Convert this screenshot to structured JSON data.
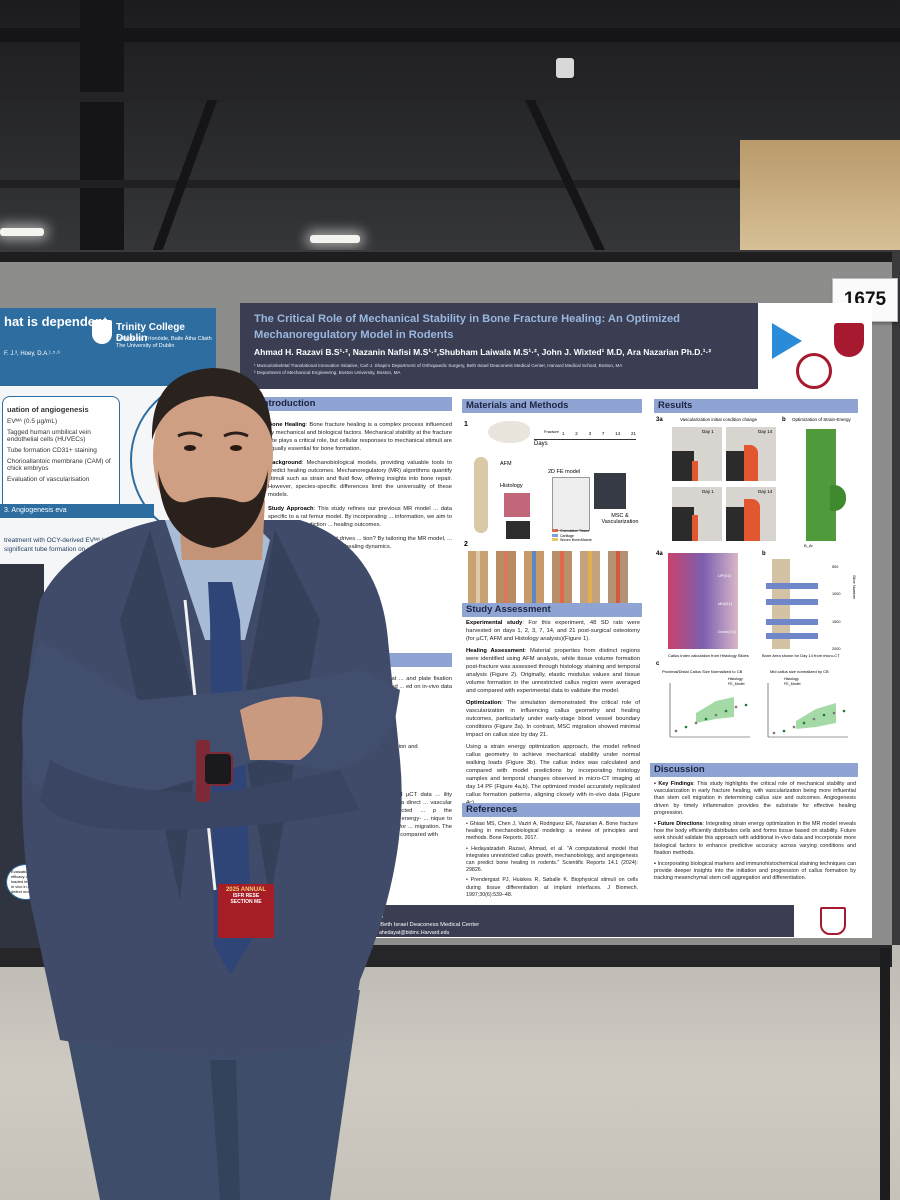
{
  "booth_number": "1675",
  "left_poster": {
    "title": "hat is dependent",
    "institution": "Trinity College Dublin",
    "institution_sub": "Coláiste na Tríonóide, Baile Átha Cliath\nThe University of Dublin",
    "authors": "F. J.³, Hoey, D.A.¹·⁵·⁶",
    "box_line1": "uation of angiogenesis",
    "box_line2": "EVᴹᴬ (0.5 µg/mL)",
    "box_line3": "Tagged human umbilical vein endothelial cells (HUVECs)",
    "box_line4": "Tube formation CD31+ staining",
    "box_line5": "Chorioallantoic membrane (CAM) of chick embryos",
    "box_line6": "Evaluation of vascularisation",
    "section_bar": "3. Angiogenesis eva",
    "result_text": "treatment with OCY-derived EVᴹᴬ led to a significant tube formation on par with VEGF",
    "eval_text": "Evaluation of the efficacy of EV-loaded implants in vivo in a bone defect model"
  },
  "poster": {
    "title": "The Critical Role of Mechanical Stability in Bone Fracture Healing: An Optimized Mechanoregulatory Model in Rodents",
    "authors": "Ahmad H. Razavi B.S¹·², Nazanin Nafisi M.S¹·²,Shubham Laiwala M.S¹·², John J. Wixted¹ M.D, Ara Nazarian Ph.D.¹·²",
    "affiliation1": "¹ Musculoskeletal Translational Innovation Initiative, Carl J. Shapiro Department of Orthopaedic Surgery, Beth Israel Deaconess Medical Center, Harvard Medical School, Boston, MA",
    "affiliation2": "² Department of Mechanical Engineering, Boston University, Boston, MA",
    "introduction": {
      "heading": "Introduction",
      "p1_label": "Bone Healing",
      "p1": ": Bone fracture healing is a complex process influenced by mechanical and biological factors. Mechanical stability at the fracture site plays a critical role, but cellular responses to mechanical stimuli are equally essential for bone formation.",
      "p2_label": "Background",
      "p2": ": Mechanobiological models, providing valuable tools to predict healing outcomes. Mechanoregulatory (MR) algorithms quantify stimuli such as strain and fluid flow, offering insights into bone repair. However, species-specific differences limit the universality of these models.",
      "p3_label": "Study Approach",
      "p3": ": This study refines our previous MR model ... data specific to a rat femur model. By incorporating ... information, we aim to optimize the prediction ... healing outcomes.",
      "p4": "... ses a key question: what drives ... tion? By tailoring the MR model, ... ive accuracy and provide a ... healing dynamics.",
      "p5": "... ent model of a rat ... and plate fixation was ... ting a validated ... ed on in-vivo data ... logy and tissue",
      "p6": "... callus growth ... lization and",
      "p7": "... ictions were ... and µCT data ... ility analyses on ... howed a direct ... vascular condition and predicted ... p the introduction of a strain energy- ... nique to refine initial conditions for ... migration. The callus index of this ... n compared with"
    },
    "methods": {
      "heading": "Materials and Methods",
      "days_label": "Days",
      "fracture_label": "Fracture",
      "ticks": [
        "1",
        "2",
        "3",
        "7",
        "14",
        "21"
      ],
      "afm_label": "AFM",
      "histology_label": "Histology",
      "fe_label": "2D FE model",
      "msc_label": "MSC & Vascularization",
      "legend": [
        "Granulation Tissue",
        "Cartilage",
        "Woven Bone/Mature"
      ],
      "fig1": "1",
      "fig2": "2"
    },
    "assessment": {
      "heading": "Study Assessment",
      "p1_label": "Experimental study",
      "p1": ": For this experiment, 48 SD rats were harvested on days 1, 2, 3, 7, 14, and 21 post-surgical osteotomy (for µCT, AFM and Histology analysis)(Figure 1).",
      "p2_label": "Healing Assessment",
      "p2": ": Material properties from distinct regions were identified using AFM analysis, while tissue volume formation post-fracture was assessed through histology staining and temporal analysis (Figure 2). Originally, elastic modulus values and tissue volume formation in the unrestricted callus region were averaged and compared with experimental data to validate the model.",
      "p3_label": "Optimization",
      "p3": ": The simulation demonstrated the critical role of vascularization in influencing callus geometry and healing outcomes, particularly under early-stage blood vessel boundary conditions (Figure 3a). In contrast, MSC migration showed minimal impact on callus size by day 21.",
      "p4": "Using a strain energy optimization approach, the model refined callus geometry to achieve mechanical stability under normal walking loads (Figure 3b). The callus index was calculated and compared with model predictions by incorporating histology samples and temporal changes observed in micro-CT imaging at day 14 PF (Figure 4a,b). The optimized model accurately replicated callus formation patterns, aligning closely with in-vivo data (Figure 4c)."
    },
    "references": {
      "heading": "References",
      "items": [
        "• Ghiasi MS, Chen J, Vaziri A, Rodriguez EK, Nazarian A. Bone fracture healing in mechanobiological modeling: a review of principles and methods. Bone Reports. 2017.",
        "• Hedayatzadeh Razavi, Ahmad, et al. \"A computational model that integrates unrestricted callus growth, mechanobiology, and angiogenesis can predict bone healing in rodents.\" Scientific Reports 14.1 (2024): 29826.",
        "• Prendergast PJ, Huiskes R, Søballe K. Biophysical stimuli on cells during tissue differentiation at implant interfaces. J Biomech. 1997;30(6):539–48."
      ]
    },
    "results": {
      "heading": "Results",
      "fig3a": "3a",
      "fig3a_title": "Vascularization initial condition change",
      "fig3b": "b",
      "fig3b_title": "Optimization of Strain-Energy",
      "day1": "Day 1",
      "day14": "Day 14",
      "fig4a": "4a",
      "fig4b": "b",
      "fig4c": "c",
      "label_up": "UP(X2)",
      "label_mid": "Mid(X1)",
      "label_down": "Down(X3)",
      "cap_histology": "Callus Index calculation from Histology Slides",
      "cap_microct": "Bone Area shown for Day 14 from micro-CT",
      "plot1_title": "Proximal/Distal Callus Size Normalized to CB",
      "plot2_title": "Mid callus size normalized by CB",
      "legend_histology": "Histology",
      "legend_fe": "FE_Model",
      "b_ar": "B_Ar",
      "slice_label": "Slice Number",
      "slice_ticks": [
        "500",
        "1000",
        "1500",
        "2000"
      ],
      "x_ticks": [
        "0",
        "5",
        "10",
        "15",
        "20",
        "25"
      ]
    },
    "discussion": {
      "heading": "Discussion",
      "items": [
        {
          "label": "Key Findings",
          "text": ": This study highlights the critical role of mechanical stability and vascularization in early fracture healing, with vascularization being more influential than stem cell migration in determining callus size and outcomes. Angiogenesis driven by timely inflammation provides the substrate for effective healing progression."
        },
        {
          "label": "Future Directions",
          "text": ": Integrating strain energy optimization in the MR model reveals how the body efficiently distributes cells and forms tissue based on stability. Future work should validate this approach with additional in-vivo data and incorporate more biological factors to enhance predictive accuracy across varying conditions and fixation methods."
        },
        {
          "label": "",
          "text": "Incorporating biological markers and immunohistochemical staining techniques can provide deeper insights into the initiation and progression of callus formation by tracking mesenchymal stem cell aggregation and differentiation."
        }
      ]
    },
    "footer": {
      "name": "hmad H. Razavi",
      "affil": "on University | Beth Israel Deaconess Medical Center",
      "emails": "adhzr@bu.edu, ahedayat@bidmc.Harvard.edu"
    }
  },
  "badge": {
    "line1": "2025 ANNUAL",
    "line2": "ISFR RESE",
    "line3": "SECTION ME"
  },
  "colors": {
    "poster_header": "#3b3d52",
    "section_header": "#8fa4d3",
    "jacket": "#3e4a66",
    "trinity_blue": "#2d6da0"
  }
}
